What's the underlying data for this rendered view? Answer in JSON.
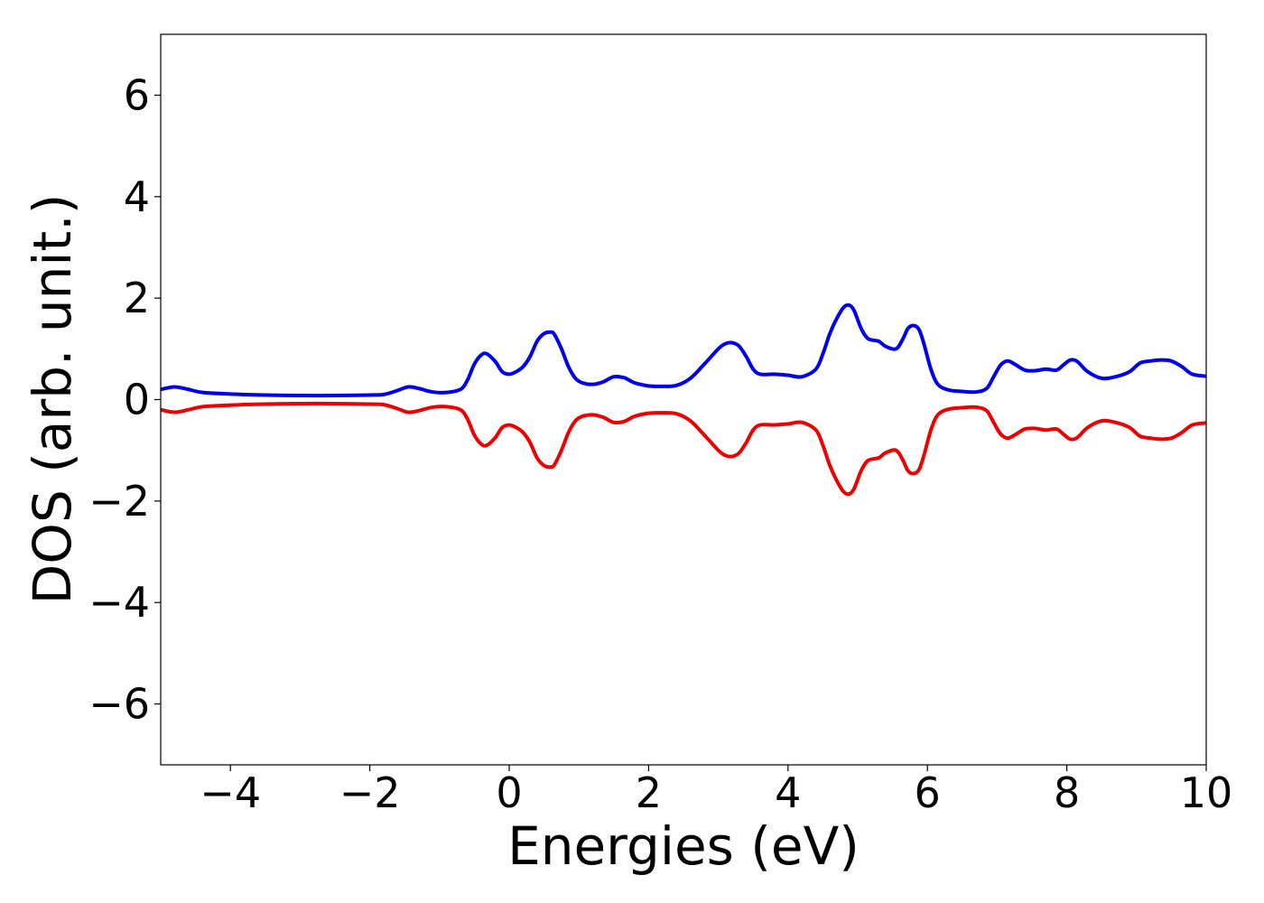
{
  "chart_data": {
    "type": "line",
    "xlabel": "Energies (eV)",
    "ylabel": "DOS (arb. unit.)",
    "xlim": [
      -5,
      10
    ],
    "ylim": [
      -7.2,
      7.2
    ],
    "xticks": [
      -4,
      -2,
      0,
      2,
      4,
      6,
      8,
      10
    ],
    "yticks": [
      6,
      4,
      2,
      0,
      -2,
      -4,
      -6
    ],
    "xtick_labels": [
      "−4",
      "−2",
      "0",
      "2",
      "4",
      "6",
      "8",
      "10"
    ],
    "ytick_labels": [
      "6",
      "4",
      "2",
      "0",
      "−2",
      "−4",
      "−6"
    ],
    "grid": false,
    "legend": "none",
    "series": [
      {
        "color": "#0000ee",
        "x": [
          -5.0,
          -4.8,
          -4.6,
          -4.4,
          -4.0,
          -3.5,
          -3.0,
          -2.5,
          -2.0,
          -1.8,
          -1.6,
          -1.45,
          -1.3,
          -1.1,
          -0.9,
          -0.7,
          -0.6,
          -0.5,
          -0.4,
          -0.32,
          -0.2,
          -0.1,
          0.0,
          0.1,
          0.2,
          0.3,
          0.4,
          0.5,
          0.6,
          0.65,
          0.75,
          0.85,
          0.95,
          1.05,
          1.2,
          1.35,
          1.5,
          1.65,
          1.8,
          2.0,
          2.2,
          2.4,
          2.6,
          2.8,
          3.0,
          3.1,
          3.2,
          3.3,
          3.4,
          3.5,
          3.6,
          3.8,
          4.0,
          4.2,
          4.4,
          4.5,
          4.6,
          4.7,
          4.8,
          4.88,
          4.95,
          5.05,
          5.15,
          5.3,
          5.4,
          5.55,
          5.65,
          5.72,
          5.8,
          5.88,
          5.95,
          6.05,
          6.15,
          6.3,
          6.5,
          6.7,
          6.85,
          6.95,
          7.05,
          7.15,
          7.25,
          7.4,
          7.55,
          7.7,
          7.85,
          7.95,
          8.05,
          8.15,
          8.3,
          8.5,
          8.7,
          8.9,
          9.05,
          9.2,
          9.35,
          9.5,
          9.65,
          9.8,
          10.0
        ],
        "y": [
          0.2,
          0.25,
          0.2,
          0.14,
          0.11,
          0.09,
          0.08,
          0.08,
          0.09,
          0.1,
          0.18,
          0.25,
          0.22,
          0.15,
          0.14,
          0.2,
          0.38,
          0.7,
          0.88,
          0.9,
          0.75,
          0.55,
          0.5,
          0.55,
          0.65,
          0.85,
          1.15,
          1.3,
          1.33,
          1.28,
          1.0,
          0.65,
          0.42,
          0.33,
          0.3,
          0.35,
          0.45,
          0.43,
          0.33,
          0.27,
          0.26,
          0.28,
          0.42,
          0.7,
          1.0,
          1.1,
          1.12,
          1.05,
          0.85,
          0.6,
          0.5,
          0.5,
          0.48,
          0.45,
          0.6,
          0.9,
          1.3,
          1.6,
          1.82,
          1.86,
          1.75,
          1.4,
          1.2,
          1.15,
          1.05,
          1.0,
          1.2,
          1.4,
          1.46,
          1.38,
          1.1,
          0.6,
          0.3,
          0.19,
          0.16,
          0.15,
          0.22,
          0.45,
          0.68,
          0.76,
          0.7,
          0.58,
          0.57,
          0.6,
          0.58,
          0.68,
          0.78,
          0.75,
          0.55,
          0.42,
          0.45,
          0.55,
          0.72,
          0.76,
          0.78,
          0.76,
          0.65,
          0.5,
          0.46
        ]
      },
      {
        "color": "#ee0000",
        "x": [
          -5.0,
          -4.8,
          -4.6,
          -4.4,
          -4.0,
          -3.5,
          -3.0,
          -2.5,
          -2.0,
          -1.8,
          -1.6,
          -1.45,
          -1.3,
          -1.1,
          -0.9,
          -0.7,
          -0.6,
          -0.5,
          -0.4,
          -0.32,
          -0.2,
          -0.1,
          0.0,
          0.1,
          0.2,
          0.3,
          0.4,
          0.5,
          0.6,
          0.65,
          0.75,
          0.85,
          0.95,
          1.05,
          1.2,
          1.35,
          1.5,
          1.65,
          1.8,
          2.0,
          2.2,
          2.4,
          2.6,
          2.8,
          3.0,
          3.1,
          3.2,
          3.3,
          3.4,
          3.5,
          3.6,
          3.8,
          4.0,
          4.2,
          4.4,
          4.5,
          4.6,
          4.7,
          4.8,
          4.88,
          4.95,
          5.05,
          5.15,
          5.3,
          5.4,
          5.55,
          5.65,
          5.72,
          5.8,
          5.88,
          5.95,
          6.05,
          6.15,
          6.3,
          6.5,
          6.7,
          6.85,
          6.95,
          7.05,
          7.15,
          7.25,
          7.4,
          7.55,
          7.7,
          7.85,
          7.95,
          8.05,
          8.15,
          8.3,
          8.5,
          8.7,
          8.9,
          9.05,
          9.2,
          9.35,
          9.5,
          9.65,
          9.8,
          10.0
        ],
        "y": [
          -0.2,
          -0.25,
          -0.2,
          -0.14,
          -0.11,
          -0.09,
          -0.08,
          -0.08,
          -0.09,
          -0.1,
          -0.18,
          -0.25,
          -0.22,
          -0.15,
          -0.14,
          -0.2,
          -0.38,
          -0.7,
          -0.88,
          -0.9,
          -0.75,
          -0.55,
          -0.5,
          -0.55,
          -0.65,
          -0.85,
          -1.15,
          -1.3,
          -1.33,
          -1.28,
          -1.0,
          -0.65,
          -0.42,
          -0.33,
          -0.3,
          -0.35,
          -0.45,
          -0.43,
          -0.33,
          -0.27,
          -0.26,
          -0.28,
          -0.42,
          -0.7,
          -1.0,
          -1.1,
          -1.12,
          -1.05,
          -0.85,
          -0.6,
          -0.5,
          -0.5,
          -0.48,
          -0.45,
          -0.6,
          -0.9,
          -1.3,
          -1.6,
          -1.82,
          -1.86,
          -1.75,
          -1.4,
          -1.2,
          -1.15,
          -1.05,
          -1.0,
          -1.2,
          -1.4,
          -1.46,
          -1.38,
          -1.1,
          -0.6,
          -0.3,
          -0.19,
          -0.16,
          -0.15,
          -0.22,
          -0.45,
          -0.68,
          -0.76,
          -0.7,
          -0.58,
          -0.57,
          -0.6,
          -0.58,
          -0.68,
          -0.78,
          -0.75,
          -0.55,
          -0.42,
          -0.45,
          -0.55,
          -0.72,
          -0.76,
          -0.78,
          -0.76,
          -0.65,
          -0.5,
          -0.46
        ]
      }
    ]
  }
}
